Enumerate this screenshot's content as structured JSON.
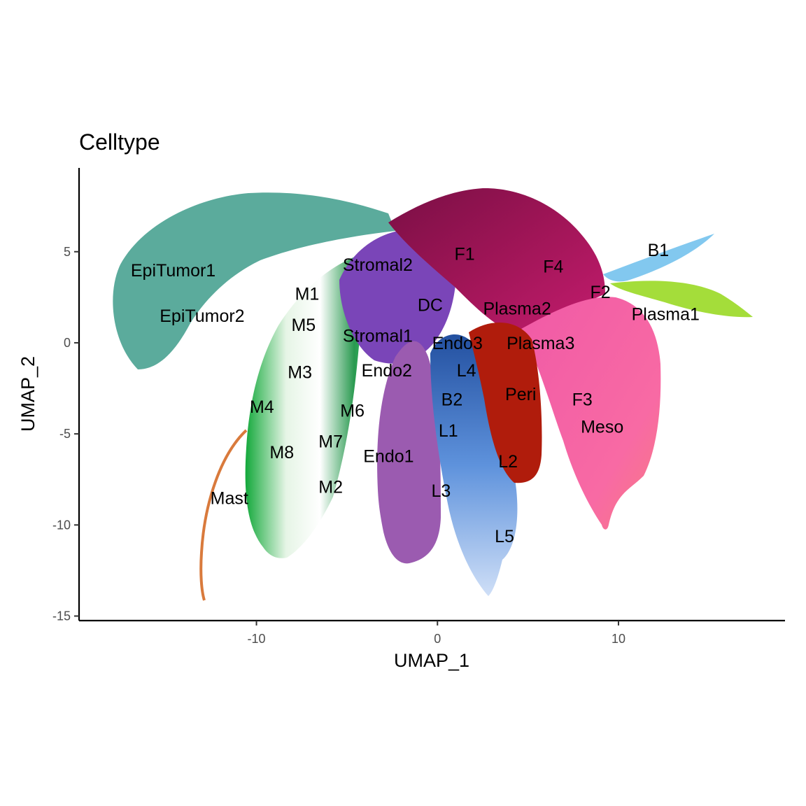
{
  "chart_data": {
    "type": "scatter",
    "title": "Celltype",
    "xlabel": "UMAP_1",
    "ylabel": "UMAP_2",
    "xlim": [
      -19.8,
      19.2
    ],
    "ylim": [
      -15.25,
      9.6
    ],
    "xticks": [
      -10,
      0,
      10
    ],
    "xtick_labels": [
      "-10",
      "0",
      "10"
    ],
    "yticks": [
      5,
      0,
      -5,
      -10,
      -15
    ],
    "ytick_labels": [
      "5",
      "0",
      "-5",
      "-10",
      "-15"
    ],
    "grid": false,
    "legend": "none",
    "clusters": [
      {
        "name": "EpiTumor1",
        "label_x": -14.6,
        "label_y": 4.0,
        "color": "#5bab9c"
      },
      {
        "name": "EpiTumor2",
        "label_x": -13.0,
        "label_y": 1.5,
        "color": "#5bab9c"
      },
      {
        "name": "M1",
        "label_x": -7.2,
        "label_y": 2.7,
        "color": "#29a852"
      },
      {
        "name": "M5",
        "label_x": -7.4,
        "label_y": 1.0,
        "color": "#36c070"
      },
      {
        "name": "M3",
        "label_x": -7.6,
        "label_y": -1.6,
        "color": "#d9f0d9"
      },
      {
        "name": "M4",
        "label_x": -9.7,
        "label_y": -3.5,
        "color": "#e3f3e3"
      },
      {
        "name": "M8",
        "label_x": -8.6,
        "label_y": -6.0,
        "color": "#c7e8c7"
      },
      {
        "name": "M7",
        "label_x": -5.9,
        "label_y": -5.4,
        "color": "#33e36d"
      },
      {
        "name": "M2",
        "label_x": -5.9,
        "label_y": -7.9,
        "color": "#2a9650"
      },
      {
        "name": "M6",
        "label_x": -4.7,
        "label_y": -3.7,
        "color": "#25c563"
      },
      {
        "name": "Mast",
        "label_x": -11.5,
        "label_y": -8.5,
        "color": "#d97a3c"
      },
      {
        "name": "Stromal2",
        "label_x": -3.3,
        "label_y": 4.3,
        "color": "#8a4fb0"
      },
      {
        "name": "Stromal1",
        "label_x": -3.3,
        "label_y": 0.4,
        "color": "#7a45b8"
      },
      {
        "name": "Endo2",
        "label_x": -2.8,
        "label_y": -1.5,
        "color": "#9a5fbe"
      },
      {
        "name": "Endo1",
        "label_x": -2.7,
        "label_y": -6.2,
        "color": "#9b5bb0"
      },
      {
        "name": "DC",
        "label_x": -0.4,
        "label_y": 2.1,
        "color": "#8a3ab8"
      },
      {
        "name": "F1",
        "label_x": 1.5,
        "label_y": 4.9,
        "color": "#8a1350"
      },
      {
        "name": "F4",
        "label_x": 6.4,
        "label_y": 4.2,
        "color": "#9a1458"
      },
      {
        "name": "F2",
        "label_x": 9.0,
        "label_y": 2.8,
        "color": "#b8186a"
      },
      {
        "name": "F3",
        "label_x": 8.0,
        "label_y": -3.1,
        "color": "#f05ca8"
      },
      {
        "name": "Meso",
        "label_x": 9.1,
        "label_y": -4.6,
        "color": "#f7639e"
      },
      {
        "name": "B1",
        "label_x": 12.2,
        "label_y": 5.1,
        "color": "#82c8ef"
      },
      {
        "name": "Plasma1",
        "label_x": 12.6,
        "label_y": 1.6,
        "color": "#a4dd3a"
      },
      {
        "name": "Plasma2",
        "label_x": 4.4,
        "label_y": 1.9,
        "color": "#b9302e"
      },
      {
        "name": "Plasma3",
        "label_x": 5.7,
        "label_y": 0.0,
        "color": "#c83a2c"
      },
      {
        "name": "Endo3",
        "label_x": 1.1,
        "label_y": 0.0,
        "color": "#4f6fc0"
      },
      {
        "name": "L4",
        "label_x": 1.6,
        "label_y": -1.5,
        "color": "#3c7ad6"
      },
      {
        "name": "Peri",
        "label_x": 4.6,
        "label_y": -2.8,
        "color": "#b01c0c"
      },
      {
        "name": "B2",
        "label_x": 0.8,
        "label_y": -3.1,
        "color": "#2d5fa8"
      },
      {
        "name": "L1",
        "label_x": 0.6,
        "label_y": -4.8,
        "color": "#4a7ec8"
      },
      {
        "name": "L2",
        "label_x": 3.9,
        "label_y": -6.5,
        "color": "#6aa0e8"
      },
      {
        "name": "L3",
        "label_x": 0.2,
        "label_y": -8.1,
        "color": "#a9c8ee"
      },
      {
        "name": "L5",
        "label_x": 3.7,
        "label_y": -10.6,
        "color": "#c9daf5"
      }
    ]
  }
}
